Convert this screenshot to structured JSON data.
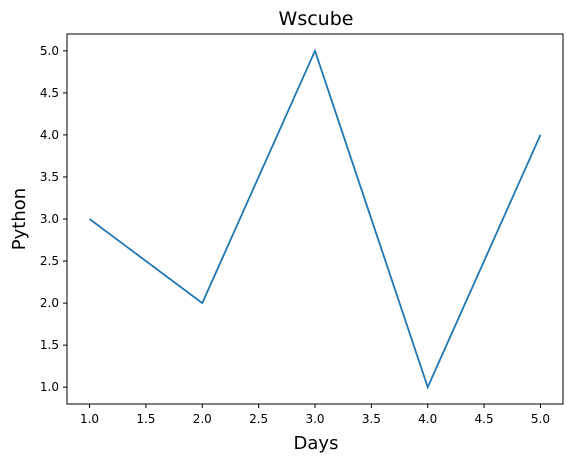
{
  "chart_data": {
    "type": "line",
    "title": "Wscube",
    "xlabel": "Days",
    "ylabel": "Python",
    "x": [
      1,
      2,
      3,
      4,
      5
    ],
    "series": [
      {
        "values": [
          3,
          2,
          5,
          1,
          4
        ]
      }
    ],
    "xlim": [
      0.8,
      5.2
    ],
    "ylim": [
      0.8,
      5.2
    ],
    "xticks": [
      "1.0",
      "1.5",
      "2.0",
      "2.5",
      "3.0",
      "3.5",
      "4.0",
      "4.5",
      "5.0"
    ],
    "yticks": [
      "1.0",
      "1.5",
      "2.0",
      "2.5",
      "3.0",
      "3.5",
      "4.0",
      "4.5",
      "5.0"
    ],
    "grid": false,
    "line_color": "#1f77b4",
    "axis_color": "#000000"
  }
}
